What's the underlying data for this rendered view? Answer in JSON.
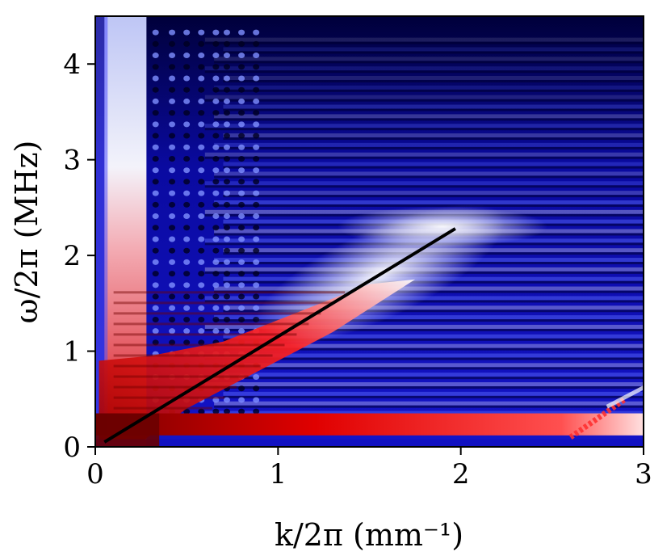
{
  "chart_data": {
    "type": "heatmap",
    "title": "",
    "xlabel": "k/2π (mm⁻¹)",
    "ylabel": "ω/2π (MHz)",
    "xlim": [
      0,
      3
    ],
    "ylim": [
      0,
      4.5
    ],
    "xticks": [
      "0",
      "1",
      "2",
      "3"
    ],
    "yticks": [
      "0",
      "1",
      "2",
      "3",
      "4"
    ],
    "colormap": {
      "low": "#00004a",
      "mid_low": "#1a1ae0",
      "mid": "#ffffff",
      "high": "#e00000",
      "max": "#7a0000"
    },
    "grid": false,
    "legend": "none",
    "dispersion_line": {
      "x": [
        0.05,
        1.97
      ],
      "y": [
        0.05,
        2.28
      ],
      "color": "#000000"
    },
    "features": {
      "low_k_vertical_band_x": [
        0.05,
        0.28
      ],
      "horizontal_low_freq_band_y": [
        0.12,
        0.35
      ],
      "red_diagonal_branch_end": [
        1.7,
        1.95
      ],
      "secondary_branch": {
        "x": [
          2.6,
          2.9
        ],
        "y": [
          0.1,
          0.5
        ]
      }
    }
  }
}
